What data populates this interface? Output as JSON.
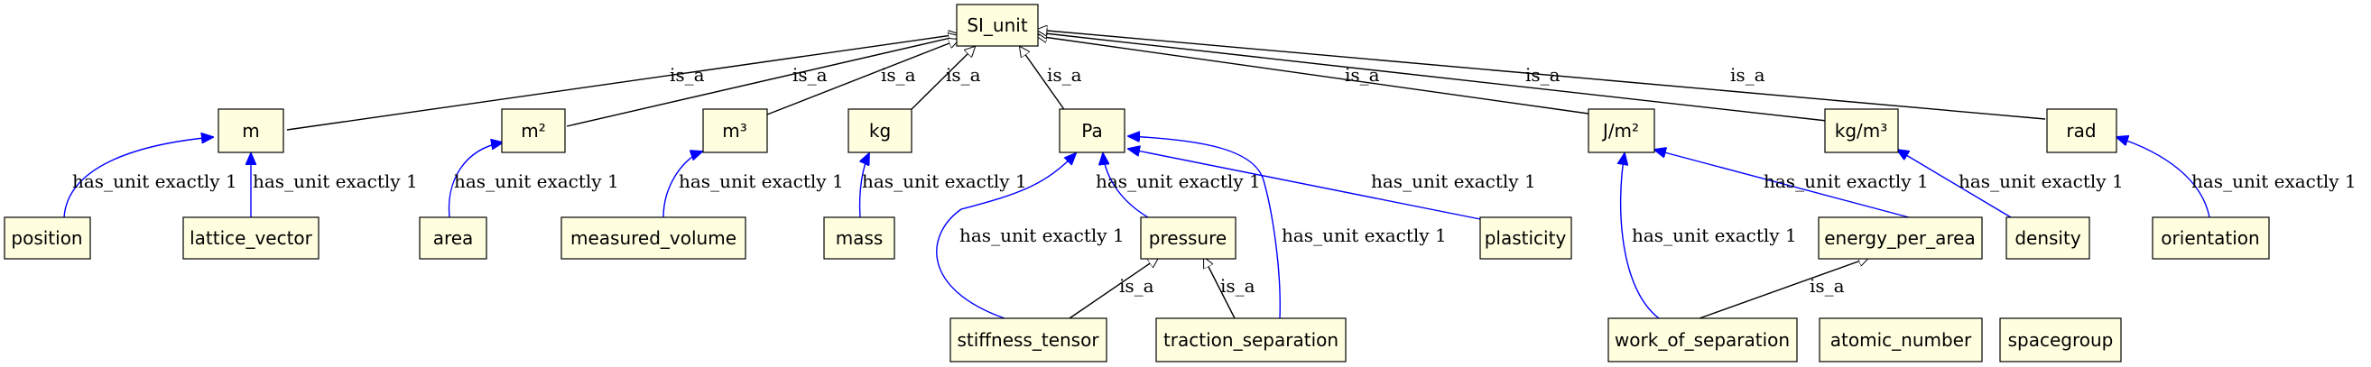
{
  "nodes": {
    "si_unit": "SI_unit",
    "m": "m",
    "m2": "m²",
    "m3": "m³",
    "kg": "kg",
    "pa": "Pa",
    "jm2": "J/m²",
    "kgm3": "kg/m³",
    "rad": "rad",
    "position": "position",
    "lattice_vector": "lattice_vector",
    "area": "area",
    "measured_volume": "measured_volume",
    "mass": "mass",
    "pressure": "pressure",
    "plasticity": "plasticity",
    "energy_per_area": "energy_per_area",
    "density": "density",
    "orientation": "orientation",
    "stiffness_tensor": "stiffness_tensor",
    "traction_separation": "traction_separation",
    "work_of_separation": "work_of_separation",
    "atomic_number": "atomic_number",
    "spacegroup": "spacegroup"
  },
  "edge_labels": {
    "is_a": "is_a",
    "has_unit_exactly_1": "has_unit exactly 1"
  },
  "colors": {
    "node_fill": "#ffffe0",
    "is_a_edge": "#000000",
    "has_unit_edge": "#0000ff"
  }
}
